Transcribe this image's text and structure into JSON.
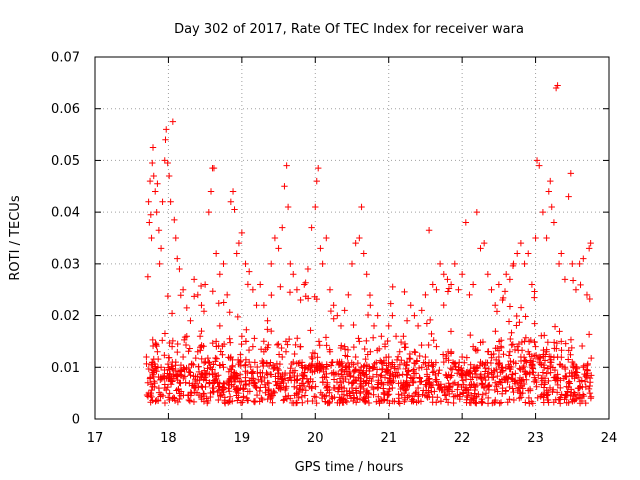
{
  "chart_data": {
    "type": "scatter",
    "title": "Day 302 of 2017, Rate Of TEC Index for receiver wara",
    "xlabel": "GPS time / hours",
    "ylabel": "ROTI / TECUs",
    "xlim": [
      17,
      24
    ],
    "ylim": [
      0,
      0.07
    ],
    "x_ticks": [
      "17",
      "18",
      "19",
      "20",
      "21",
      "22",
      "23",
      "24"
    ],
    "y_ticks": [
      "0",
      "0.01",
      "0.02",
      "0.03",
      "0.04",
      "0.05",
      "0.06",
      "0.07"
    ],
    "grid": true,
    "marker": "+",
    "color": "#ff0000",
    "series": [
      {
        "name": "ROTI",
        "points": [
          [
            17.7,
            0.012
          ],
          [
            17.72,
            0.0275
          ],
          [
            17.73,
            0.042
          ],
          [
            17.74,
            0.038
          ],
          [
            17.75,
            0.046
          ],
          [
            17.76,
            0.0395
          ],
          [
            17.77,
            0.035
          ],
          [
            17.78,
            0.0495
          ],
          [
            17.79,
            0.0525
          ],
          [
            17.8,
            0.047
          ],
          [
            17.82,
            0.044
          ],
          [
            17.84,
            0.04
          ],
          [
            17.85,
            0.0455
          ],
          [
            17.87,
            0.0365
          ],
          [
            17.88,
            0.03
          ],
          [
            17.9,
            0.033
          ],
          [
            17.92,
            0.042
          ],
          [
            17.95,
            0.05
          ],
          [
            17.96,
            0.054
          ],
          [
            17.97,
            0.056
          ],
          [
            17.99,
            0.0495
          ],
          [
            18.01,
            0.047
          ],
          [
            18.03,
            0.042
          ],
          [
            18.06,
            0.0575
          ],
          [
            18.08,
            0.0385
          ],
          [
            18.1,
            0.035
          ],
          [
            18.12,
            0.031
          ],
          [
            18.15,
            0.029
          ],
          [
            18.2,
            0.025
          ],
          [
            18.25,
            0.0215
          ],
          [
            18.3,
            0.019
          ],
          [
            18.35,
            0.027
          ],
          [
            18.4,
            0.024
          ],
          [
            18.45,
            0.022
          ],
          [
            18.5,
            0.026
          ],
          [
            18.55,
            0.04
          ],
          [
            18.58,
            0.044
          ],
          [
            18.6,
            0.0485
          ],
          [
            18.62,
            0.0485
          ],
          [
            18.65,
            0.032
          ],
          [
            18.7,
            0.028
          ],
          [
            18.75,
            0.03
          ],
          [
            18.8,
            0.024
          ],
          [
            18.85,
            0.042
          ],
          [
            18.88,
            0.044
          ],
          [
            18.9,
            0.0405
          ],
          [
            18.93,
            0.032
          ],
          [
            18.96,
            0.034
          ],
          [
            19.0,
            0.036
          ],
          [
            19.05,
            0.03
          ],
          [
            19.1,
            0.0285
          ],
          [
            19.15,
            0.025
          ],
          [
            19.2,
            0.022
          ],
          [
            19.25,
            0.026
          ],
          [
            19.3,
            0.022
          ],
          [
            19.35,
            0.019
          ],
          [
            19.4,
            0.03
          ],
          [
            19.45,
            0.035
          ],
          [
            19.5,
            0.033
          ],
          [
            19.55,
            0.037
          ],
          [
            19.58,
            0.045
          ],
          [
            19.61,
            0.049
          ],
          [
            19.63,
            0.041
          ],
          [
            19.66,
            0.03
          ],
          [
            19.7,
            0.028
          ],
          [
            19.75,
            0.025
          ],
          [
            19.8,
            0.023
          ],
          [
            19.85,
            0.026
          ],
          [
            19.9,
            0.029
          ],
          [
            19.95,
            0.037
          ],
          [
            20.0,
            0.041
          ],
          [
            20.02,
            0.046
          ],
          [
            20.04,
            0.0485
          ],
          [
            20.07,
            0.033
          ],
          [
            20.1,
            0.03
          ],
          [
            20.15,
            0.035
          ],
          [
            20.2,
            0.025
          ],
          [
            20.25,
            0.022
          ],
          [
            20.3,
            0.02
          ],
          [
            20.35,
            0.018
          ],
          [
            20.4,
            0.021
          ],
          [
            20.45,
            0.024
          ],
          [
            20.5,
            0.03
          ],
          [
            20.55,
            0.034
          ],
          [
            20.6,
            0.035
          ],
          [
            20.63,
            0.041
          ],
          [
            20.66,
            0.032
          ],
          [
            20.7,
            0.028
          ],
          [
            20.75,
            0.022
          ],
          [
            20.8,
            0.018
          ],
          [
            20.85,
            0.02
          ],
          [
            20.9,
            0.016
          ],
          [
            20.95,
            0.014
          ],
          [
            21.0,
            0.018
          ],
          [
            21.05,
            0.02
          ],
          [
            21.1,
            0.016
          ],
          [
            21.15,
            0.013
          ],
          [
            21.2,
            0.016
          ],
          [
            21.25,
            0.019
          ],
          [
            21.3,
            0.022
          ],
          [
            21.35,
            0.02
          ],
          [
            21.4,
            0.018
          ],
          [
            21.45,
            0.021
          ],
          [
            21.5,
            0.024
          ],
          [
            21.55,
            0.0365
          ],
          [
            21.6,
            0.026
          ],
          [
            21.65,
            0.025
          ],
          [
            21.7,
            0.03
          ],
          [
            21.75,
            0.028
          ],
          [
            21.8,
            0.027
          ],
          [
            21.85,
            0.026
          ],
          [
            21.9,
            0.03
          ],
          [
            21.95,
            0.025
          ],
          [
            22.0,
            0.028
          ],
          [
            22.05,
            0.038
          ],
          [
            22.1,
            0.024
          ],
          [
            22.15,
            0.026
          ],
          [
            22.2,
            0.04
          ],
          [
            22.25,
            0.033
          ],
          [
            22.3,
            0.034
          ],
          [
            22.35,
            0.028
          ],
          [
            22.4,
            0.025
          ],
          [
            22.45,
            0.022
          ],
          [
            22.5,
            0.026
          ],
          [
            22.55,
            0.023
          ],
          [
            22.6,
            0.028
          ],
          [
            22.65,
            0.027
          ],
          [
            22.7,
            0.03
          ],
          [
            22.75,
            0.032
          ],
          [
            22.8,
            0.034
          ],
          [
            22.85,
            0.03
          ],
          [
            22.9,
            0.032
          ],
          [
            22.95,
            0.026
          ],
          [
            23.0,
            0.035
          ],
          [
            23.02,
            0.05
          ],
          [
            23.05,
            0.049
          ],
          [
            23.1,
            0.04
          ],
          [
            23.15,
            0.035
          ],
          [
            23.18,
            0.044
          ],
          [
            23.2,
            0.046
          ],
          [
            23.22,
            0.041
          ],
          [
            23.25,
            0.038
          ],
          [
            23.28,
            0.064
          ],
          [
            23.3,
            0.0645
          ],
          [
            23.32,
            0.03
          ],
          [
            23.35,
            0.032
          ],
          [
            23.4,
            0.027
          ],
          [
            23.45,
            0.043
          ],
          [
            23.48,
            0.0475
          ],
          [
            23.5,
            0.03
          ],
          [
            23.55,
            0.025
          ],
          [
            23.6,
            0.03
          ],
          [
            23.65,
            0.031
          ],
          [
            23.7,
            0.024
          ],
          [
            23.73,
            0.033
          ],
          [
            23.75,
            0.034
          ],
          [
            17.72,
            0.007
          ],
          [
            17.76,
            0.005
          ],
          [
            17.8,
            0.009
          ],
          [
            17.85,
            0.013
          ],
          [
            17.9,
            0.01
          ],
          [
            17.95,
            0.006
          ],
          [
            18.0,
            0.008
          ],
          [
            18.05,
            0.014
          ],
          [
            18.1,
            0.011
          ],
          [
            18.15,
            0.007
          ],
          [
            18.2,
            0.012
          ],
          [
            18.25,
            0.016
          ],
          [
            18.3,
            0.009
          ],
          [
            18.35,
            0.006
          ],
          [
            18.4,
            0.013
          ],
          [
            18.45,
            0.017
          ],
          [
            18.5,
            0.008
          ],
          [
            18.55,
            0.011
          ],
          [
            18.6,
            0.006
          ],
          [
            18.65,
            0.015
          ],
          [
            18.7,
            0.018
          ],
          [
            18.75,
            0.01
          ],
          [
            18.8,
            0.007
          ],
          [
            18.85,
            0.012
          ],
          [
            18.9,
            0.009
          ],
          [
            18.95,
            0.005
          ],
          [
            19.0,
            0.016
          ],
          [
            19.05,
            0.008
          ],
          [
            19.1,
            0.011
          ],
          [
            19.15,
            0.014
          ],
          [
            19.2,
            0.006
          ],
          [
            19.25,
            0.009
          ],
          [
            19.3,
            0.013
          ],
          [
            19.35,
            0.007
          ],
          [
            19.4,
            0.017
          ],
          [
            19.45,
            0.01
          ],
          [
            19.5,
            0.006
          ],
          [
            19.55,
            0.012
          ],
          [
            19.6,
            0.015
          ],
          [
            19.65,
            0.008
          ],
          [
            19.7,
            0.011
          ],
          [
            19.75,
            0.006
          ],
          [
            19.8,
            0.014
          ],
          [
            19.85,
            0.009
          ],
          [
            19.9,
            0.007
          ],
          [
            19.95,
            0.012
          ],
          [
            20.0,
            0.01
          ],
          [
            20.05,
            0.015
          ],
          [
            20.1,
            0.008
          ],
          [
            20.15,
            0.006
          ],
          [
            20.2,
            0.013
          ],
          [
            20.25,
            0.009
          ],
          [
            20.3,
            0.011
          ],
          [
            20.35,
            0.007
          ],
          [
            20.4,
            0.014
          ],
          [
            20.45,
            0.01
          ],
          [
            20.5,
            0.006
          ],
          [
            20.55,
            0.012
          ],
          [
            20.6,
            0.015
          ],
          [
            20.65,
            0.009
          ],
          [
            20.7,
            0.007
          ],
          [
            20.75,
            0.013
          ],
          [
            20.8,
            0.01
          ],
          [
            20.85,
            0.006
          ],
          [
            20.9,
            0.011
          ],
          [
            20.95,
            0.008
          ],
          [
            21.0,
            0.012
          ],
          [
            21.05,
            0.006
          ],
          [
            21.1,
            0.009
          ],
          [
            21.15,
            0.003
          ],
          [
            21.2,
            0.007
          ],
          [
            21.25,
            0.011
          ],
          [
            21.3,
            0.008
          ],
          [
            21.35,
            0.013
          ],
          [
            21.4,
            0.006
          ],
          [
            21.45,
            0.01
          ],
          [
            21.5,
            0.012
          ],
          [
            21.55,
            0.007
          ],
          [
            21.6,
            0.009
          ],
          [
            21.65,
            0.014
          ],
          [
            21.7,
            0.006
          ],
          [
            21.75,
            0.011
          ],
          [
            21.8,
            0.008
          ],
          [
            21.85,
            0.013
          ],
          [
            21.9,
            0.007
          ],
          [
            21.95,
            0.01
          ],
          [
            22.0,
            0.012
          ],
          [
            22.05,
            0.006
          ],
          [
            22.1,
            0.009
          ],
          [
            22.15,
            0.014
          ],
          [
            22.2,
            0.008
          ],
          [
            22.25,
            0.011
          ],
          [
            22.3,
            0.006
          ],
          [
            22.35,
            0.013
          ],
          [
            22.4,
            0.009
          ],
          [
            22.45,
            0.007
          ],
          [
            22.5,
            0.012
          ],
          [
            22.55,
            0.01
          ],
          [
            22.6,
            0.008
          ],
          [
            22.65,
            0.013
          ],
          [
            22.7,
            0.011
          ],
          [
            22.75,
            0.014
          ],
          [
            22.8,
            0.012
          ],
          [
            22.85,
            0.015
          ],
          [
            22.9,
            0.013
          ],
          [
            22.95,
            0.01
          ],
          [
            23.0,
            0.014
          ],
          [
            23.05,
            0.012
          ],
          [
            23.1,
            0.009
          ],
          [
            23.15,
            0.013
          ],
          [
            23.2,
            0.011
          ],
          [
            23.25,
            0.008
          ],
          [
            23.3,
            0.012
          ],
          [
            23.35,
            0.015
          ],
          [
            23.4,
            0.01
          ],
          [
            23.45,
            0.007
          ],
          [
            23.5,
            0.011
          ],
          [
            23.55,
            0.009
          ],
          [
            23.6,
            0.006
          ],
          [
            23.65,
            0.01
          ],
          [
            23.7,
            0.008
          ],
          [
            23.74,
            0.005
          ]
        ]
      }
    ]
  }
}
